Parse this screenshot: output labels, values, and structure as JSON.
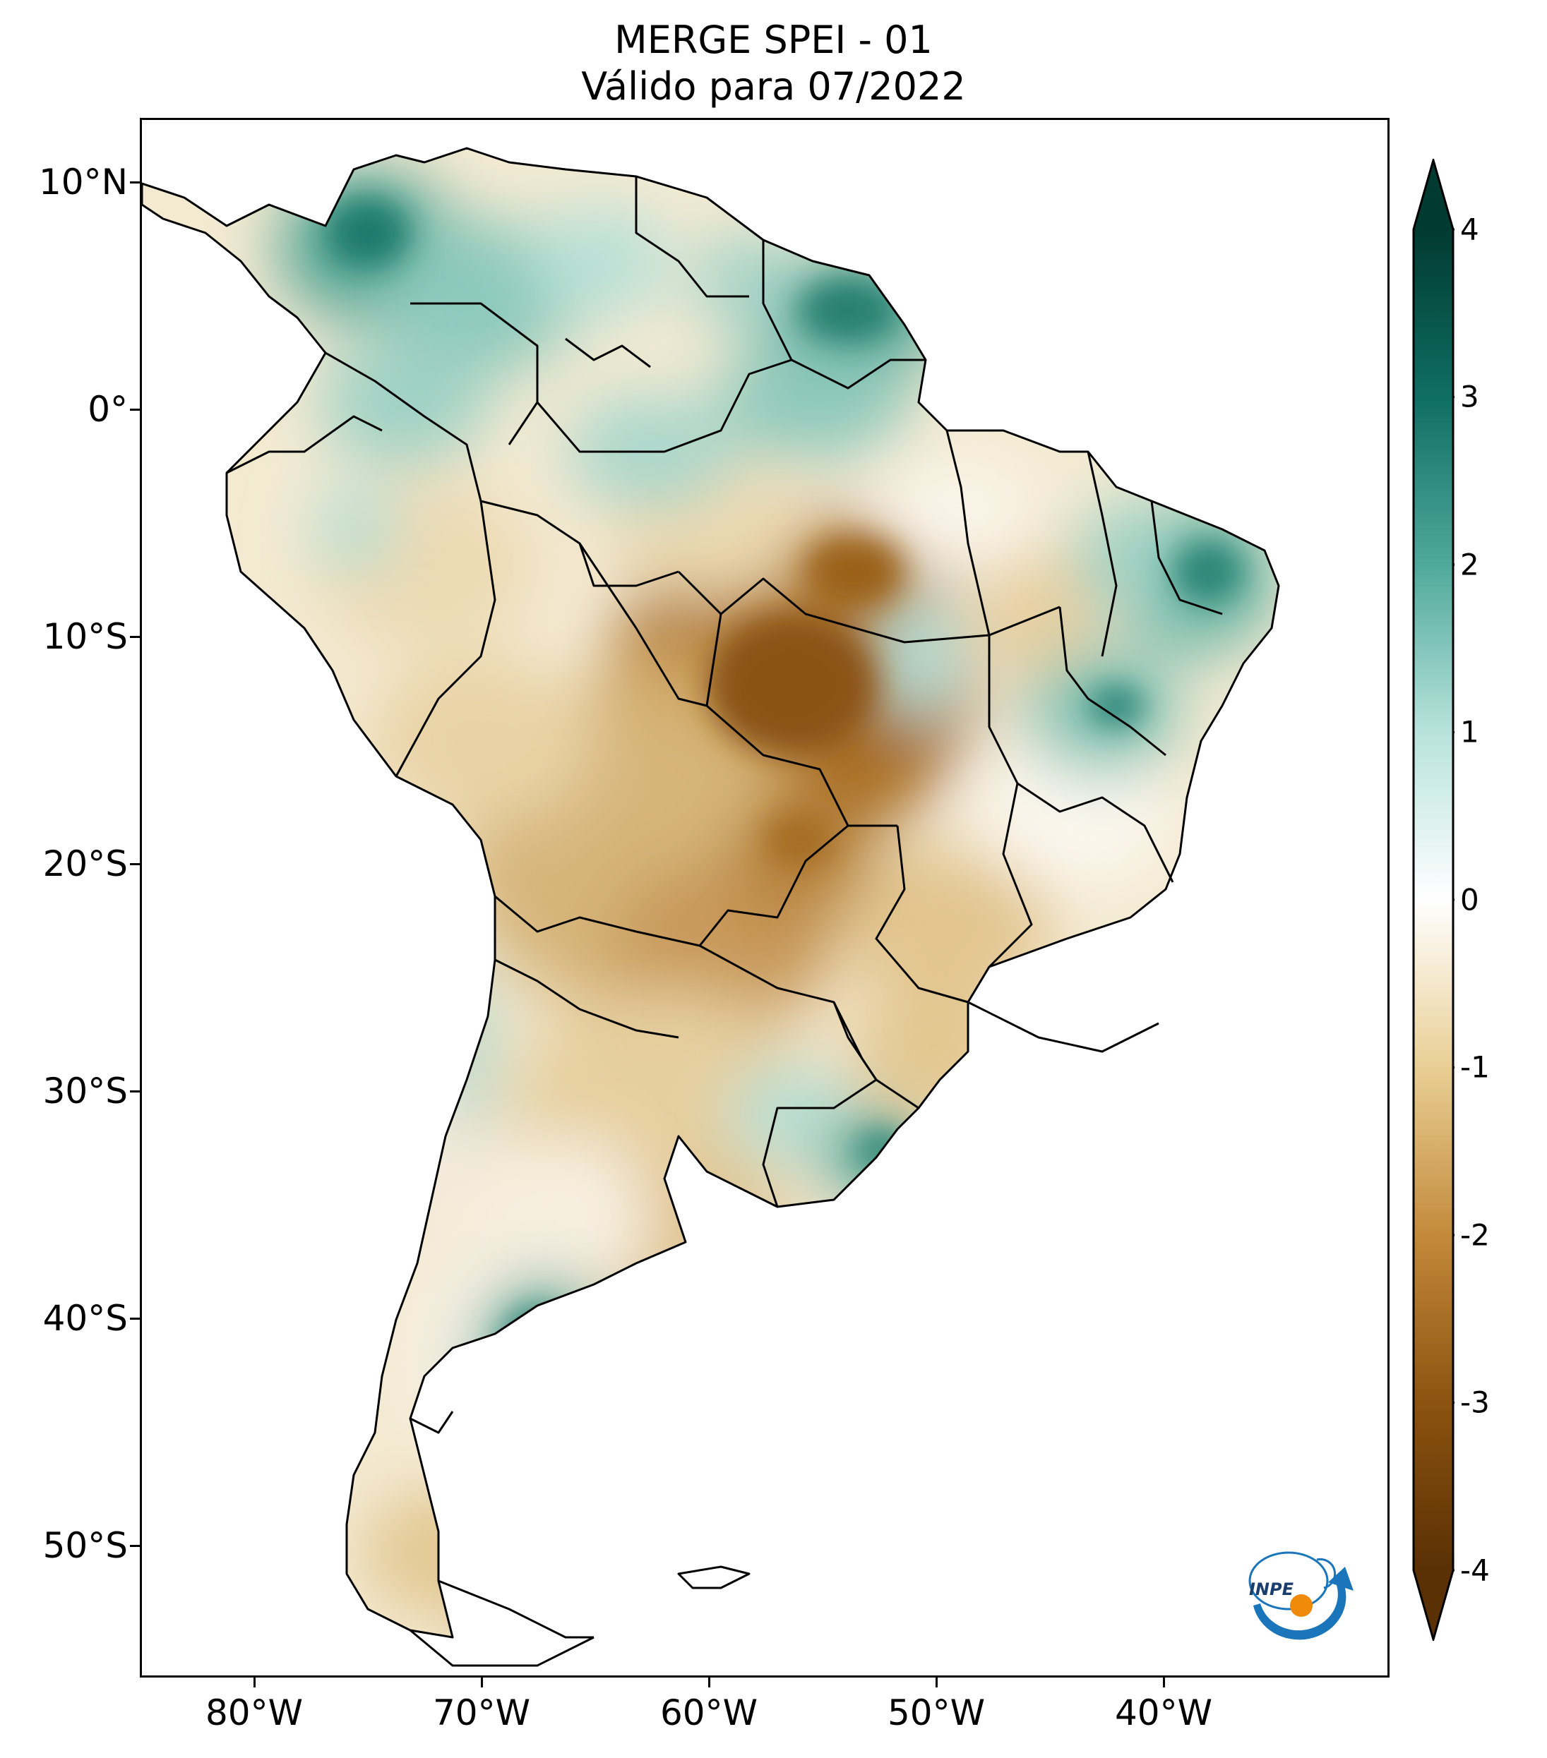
{
  "title": {
    "line1": "MERGE   SPEI - 01",
    "line2": "Válido para 07/2022"
  },
  "map": {
    "region": "South America",
    "lon_range": [
      -85,
      -30
    ],
    "lat_range": [
      -56,
      13
    ],
    "lat_labels": [
      {
        "value": 10,
        "text": "10°N"
      },
      {
        "value": 0,
        "text": "0°"
      },
      {
        "value": -10,
        "text": "10°S"
      },
      {
        "value": -20,
        "text": "20°S"
      },
      {
        "value": -30,
        "text": "30°S"
      },
      {
        "value": -40,
        "text": "40°S"
      },
      {
        "value": -50,
        "text": "50°S"
      }
    ],
    "lon_labels": [
      {
        "value": -80,
        "text": "80°W"
      },
      {
        "value": -70,
        "text": "70°W"
      },
      {
        "value": -60,
        "text": "60°W"
      },
      {
        "value": -50,
        "text": "50°W"
      },
      {
        "value": -40,
        "text": "40°W"
      }
    ]
  },
  "colorbar": {
    "min": -4,
    "max": 4,
    "ticks": [
      "4",
      "3",
      "2",
      "1",
      "0",
      "-1",
      "-2",
      "-3",
      "-4"
    ],
    "colors": {
      "dry_extreme": "#5a3004",
      "dry_strong": "#8c5310",
      "dry": "#c38a3b",
      "dry_light": "#e9cf95",
      "neutral": "#ffffff",
      "wet_light": "#b8e3dc",
      "wet": "#4fa99a",
      "wet_strong": "#0f6e62",
      "wet_extreme": "#013a30"
    }
  },
  "logo": {
    "text": "INPE",
    "name": "inpe-logo"
  }
}
